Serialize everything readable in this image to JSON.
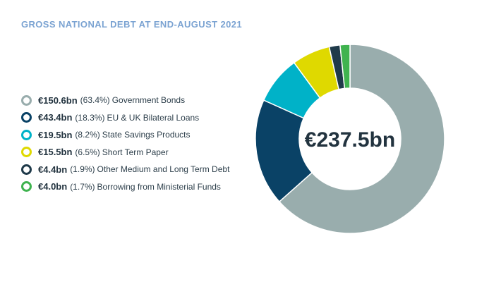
{
  "title": "GROSS NATIONAL DEBT AT END-AUGUST 2021",
  "chart_data": {
    "type": "pie",
    "style": "donut",
    "title": "GROSS NATIONAL DEBT AT END-AUGUST 2021",
    "center_label": "€237.5bn",
    "legend_position": "left",
    "slices": [
      {
        "value_label": "€150.6bn",
        "pct_label": "(63.4%)",
        "label": "Government Bonds",
        "value": 150.6,
        "pct": 63.4,
        "color": "#99adad"
      },
      {
        "value_label": "€43.4bn",
        "pct_label": "(18.3%)",
        "label": "EU & UK Bilateral Loans",
        "value": 43.4,
        "pct": 18.3,
        "color": "#0a4266"
      },
      {
        "value_label": "€19.5bn",
        "pct_label": "(8.2%)",
        "label": "State Savings Products",
        "value": 19.5,
        "pct": 8.2,
        "color": "#00b2c8"
      },
      {
        "value_label": "€15.5bn",
        "pct_label": "(6.5%)",
        "label": "Short Term Paper",
        "value": 15.5,
        "pct": 6.5,
        "color": "#dfd900"
      },
      {
        "value_label": "€4.4bn",
        "pct_label": "(1.9%)",
        "label": "Other Medium and Long Term Debt",
        "value": 4.4,
        "pct": 1.9,
        "color": "#1f3a4a"
      },
      {
        "value_label": "€4.0bn",
        "pct_label": "(1.7%)",
        "label": "Borrowing from Ministerial Funds",
        "value": 4.0,
        "pct": 1.7,
        "color": "#3fb34f"
      }
    ]
  }
}
